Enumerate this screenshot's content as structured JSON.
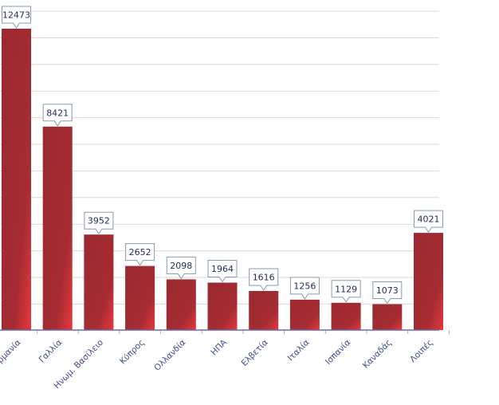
{
  "chart_data": {
    "type": "bar",
    "categories": [
      "Γερμανία",
      "Γαλλία",
      "Ηνωμ. Βασίλειο",
      "Κύπρος",
      "Ολλανδία",
      "ΗΠΑ",
      "Ελβετία",
      "Ιταλία",
      "Ισπανία",
      "Καναδάς",
      "Λοιπές"
    ],
    "values": [
      12473,
      8421,
      3952,
      2652,
      2098,
      1964,
      1616,
      1256,
      1129,
      1073,
      4021
    ],
    "title": "",
    "xlabel": "",
    "ylabel": "",
    "ylim": [
      0,
      12473
    ],
    "grid": true,
    "colors": {
      "bar": "#9b2a30",
      "bar_light": "#e03a40",
      "axis": "#6a6ab0",
      "grid": "#d9d9d9",
      "label_text": "#1a2e55",
      "category_text": "#3d4f8a"
    }
  }
}
